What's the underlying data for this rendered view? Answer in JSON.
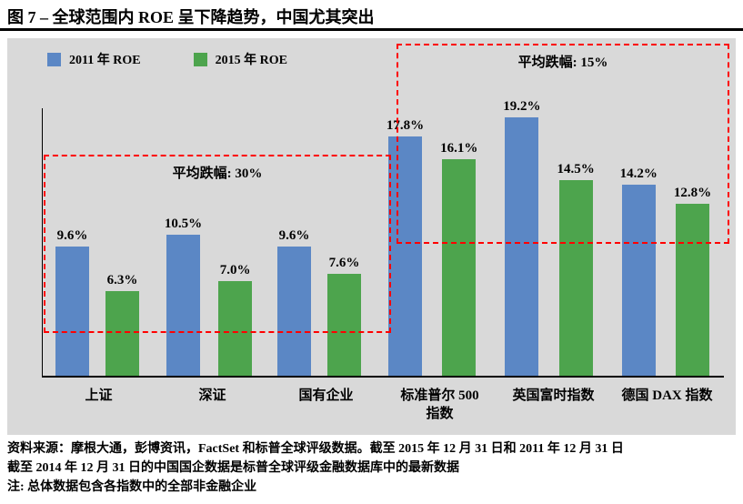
{
  "title": "图 7 – 全球范围内 ROE 呈下降趋势，中国尤其突出",
  "colors": {
    "panel_background": "#D9D9D9",
    "annotation_red": "#FF0000",
    "axis": "#000000"
  },
  "chart_data": {
    "type": "bar",
    "categories": [
      "上证",
      "深证",
      "国有企业",
      "标准普尔 500\n指数",
      "英国富时指数",
      "德国 DAX 指数"
    ],
    "series": [
      {
        "name": "2011 年 ROE",
        "color": "#5B87C5",
        "values": [
          9.6,
          10.5,
          9.6,
          17.8,
          19.2,
          14.2
        ]
      },
      {
        "name": "2015 年 ROE",
        "color": "#4DA44D",
        "values": [
          6.3,
          7.0,
          7.6,
          16.1,
          14.5,
          12.8
        ]
      }
    ],
    "value_label_format": "{value}%",
    "ylim": [
      0,
      20
    ],
    "grid": false,
    "legend_position": "top-left",
    "plot_background": "#D9D9D9",
    "annotations": [
      {
        "label": "平均跌幅: 30%",
        "covers_categories": [
          "上证",
          "深证",
          "国有企业"
        ]
      },
      {
        "label": "平均跌幅: 15%",
        "covers_categories": [
          "标准普尔 500 指数",
          "英国富时指数",
          "德国 DAX 指数"
        ]
      }
    ]
  },
  "footnotes": [
    "资料来源：摩根大通，彭博资讯，FactSet 和标普全球评级数据。截至 2015 年 12 月 31 日和 2011 年 12 月 31 日",
    "截至 2014 年 12 月 31 日的中国国企数据是标普全球评级金融数据库中的最新数据",
    "注: 总体数据包含各指数中的全部非金融企业"
  ]
}
